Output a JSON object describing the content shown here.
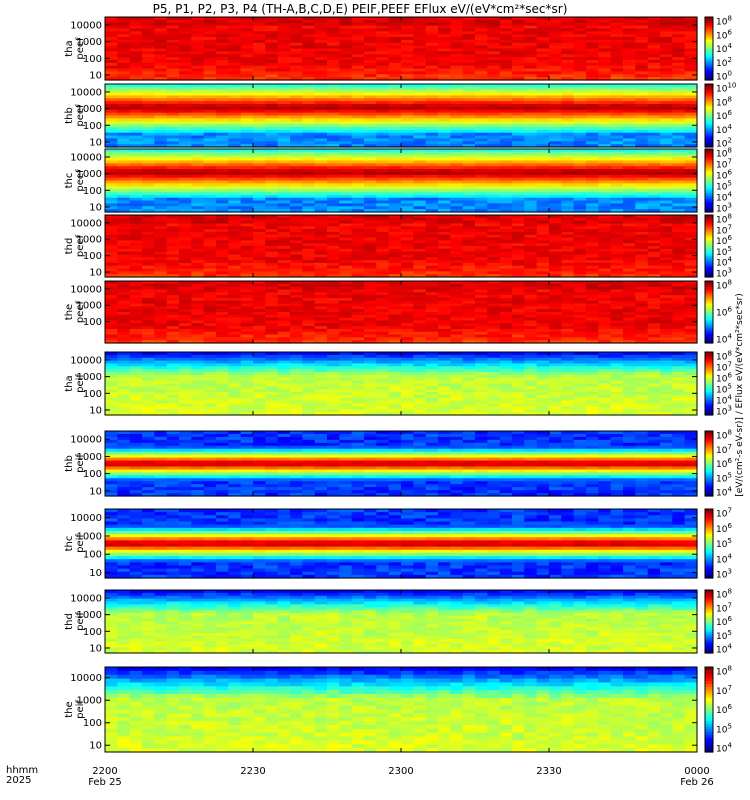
{
  "title": "P5, P1, P2, P3, P4 (TH-A,B,C,D,E) PEIF,PEEF EFlux eV/(eV*cm²*sec*sr)",
  "colorbar_title": "[eV/(cm²-s eV-sr)] / EFlux eV/(eV*cm²*sec*sr)",
  "time_axis": {
    "row_label_1": "hhmm",
    "row_label_2": "2025",
    "ticks": [
      {
        "label": "2200",
        "date": "Feb 25"
      },
      {
        "label": "2230",
        "date": ""
      },
      {
        "label": "2300",
        "date": ""
      },
      {
        "label": "2330",
        "date": ""
      },
      {
        "label": "0000",
        "date": "Feb 26"
      }
    ]
  },
  "chart_data": [
    {
      "type": "heatmap",
      "panel": "tha peef",
      "ylabel": "tha\npeef",
      "ylim": [
        5,
        30000
      ],
      "yscale": "log",
      "yticks": [
        "10000",
        "1000",
        "100",
        "10"
      ],
      "cb_ticks": [
        "10^8",
        "10^6",
        "10^4",
        "10^2",
        "10^0"
      ],
      "dominant": "high"
    },
    {
      "type": "heatmap",
      "panel": "thb peef",
      "ylabel": "thb\npeef",
      "ylim": [
        5,
        30000
      ],
      "yscale": "log",
      "yticks": [
        "10000",
        "1000",
        "100",
        "10"
      ],
      "cb_ticks": [
        "10^10",
        "10^8",
        "10^6",
        "10^4",
        "10^2"
      ],
      "dominant": "banded"
    },
    {
      "type": "heatmap",
      "panel": "thc peef",
      "ylabel": "thc\npeef",
      "ylim": [
        5,
        30000
      ],
      "yscale": "log",
      "yticks": [
        "10000",
        "1000",
        "100",
        "10"
      ],
      "cb_ticks": [
        "10^8",
        "10^7",
        "10^6",
        "10^5",
        "10^4",
        "10^3"
      ],
      "dominant": "banded"
    },
    {
      "type": "heatmap",
      "panel": "thd peef",
      "ylabel": "thd\npeef",
      "ylim": [
        5,
        30000
      ],
      "yscale": "log",
      "yticks": [
        "10000",
        "1000",
        "100",
        "10"
      ],
      "cb_ticks": [
        "10^8",
        "10^7",
        "10^6",
        "10^5",
        "10^4",
        "10^3"
      ],
      "dominant": "high"
    },
    {
      "type": "heatmap",
      "panel": "the peef",
      "ylabel": "the\npeef",
      "ylim": [
        5,
        30000
      ],
      "yscale": "log",
      "yticks": [
        "10000",
        "1000",
        "100"
      ],
      "cb_ticks": [
        "10^8",
        "10^6",
        "10^4"
      ],
      "dominant": "high"
    },
    {
      "type": "heatmap",
      "panel": "tha peif",
      "ylabel": "tha\npeif",
      "ylim": [
        5,
        30000
      ],
      "yscale": "log",
      "yticks": [
        "10000",
        "1000",
        "100",
        "10"
      ],
      "cb_ticks": [
        "10^8",
        "10^7",
        "10^6",
        "10^5",
        "10^4",
        "10^3"
      ],
      "dominant": "ion"
    },
    {
      "type": "heatmap",
      "panel": "thb peif",
      "ylabel": "thb\npeif",
      "ylim": [
        5,
        30000
      ],
      "yscale": "log",
      "yticks": [
        "10000",
        "1000",
        "100",
        "10"
      ],
      "cb_ticks": [
        "10^8",
        "10^7",
        "10^6",
        "10^5",
        "10^4"
      ],
      "dominant": "ionband"
    },
    {
      "type": "heatmap",
      "panel": "thc peif",
      "ylabel": "thc\npeif",
      "ylim": [
        5,
        30000
      ],
      "yscale": "log",
      "yticks": [
        "10000",
        "1000",
        "100",
        "10"
      ],
      "cb_ticks": [
        "10^7",
        "10^6",
        "10^5",
        "10^4",
        "10^3"
      ],
      "dominant": "ionband"
    },
    {
      "type": "heatmap",
      "panel": "thd peif",
      "ylabel": "thd\npeif",
      "ylim": [
        5,
        30000
      ],
      "yscale": "log",
      "yticks": [
        "10000",
        "1000",
        "100",
        "10"
      ],
      "cb_ticks": [
        "10^8",
        "10^7",
        "10^6",
        "10^5",
        "10^4"
      ],
      "dominant": "ion"
    },
    {
      "type": "heatmap",
      "panel": "the peif",
      "ylabel": "the\npeif",
      "ylim": [
        5,
        30000
      ],
      "yscale": "log",
      "yticks": [
        "10000",
        "1000",
        "100",
        "10"
      ],
      "cb_ticks": [
        "10^8",
        "10^7",
        "10^6",
        "10^5",
        "10^4"
      ],
      "dominant": "ion"
    }
  ]
}
